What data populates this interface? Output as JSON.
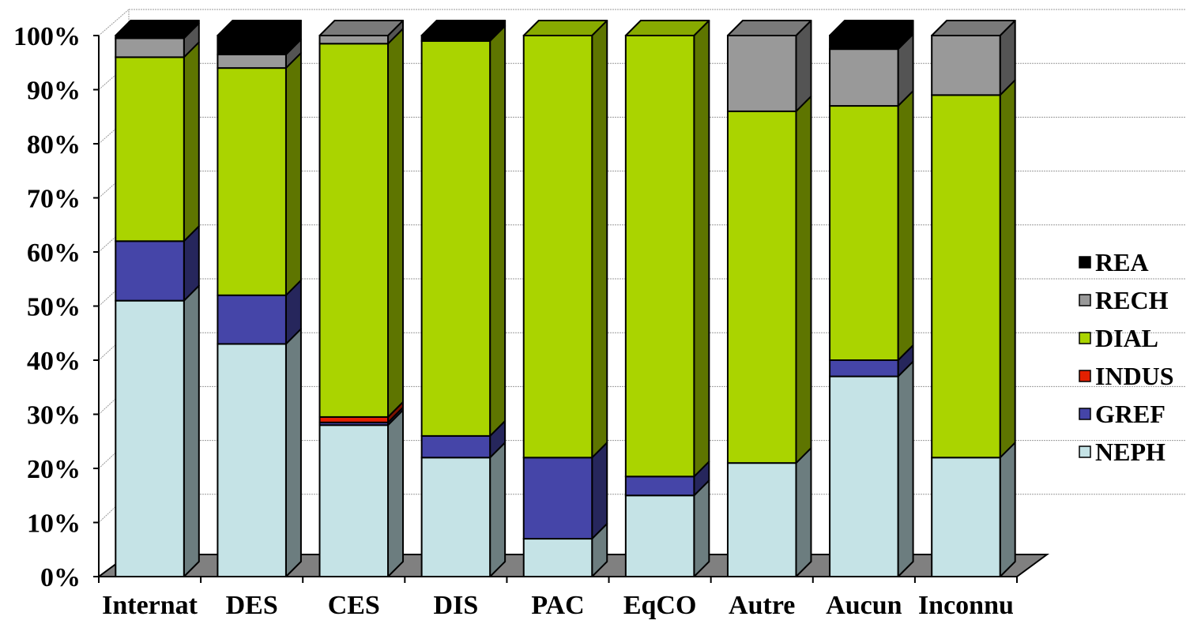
{
  "chart_data": {
    "type": "bar",
    "stacked": true,
    "percent_stacked": true,
    "three_d": true,
    "title": "",
    "xlabel": "",
    "ylabel": "",
    "ylim": [
      0,
      100
    ],
    "y_ticks": [
      0,
      10,
      20,
      30,
      40,
      50,
      60,
      70,
      80,
      90,
      100
    ],
    "y_tick_suffix": "%",
    "grid": true,
    "legend_position": "right",
    "categories": [
      "Internat",
      "DES",
      "CES",
      "DIS",
      "PAC",
      "EqCO",
      "Autre",
      "Aucun",
      "Inconnu"
    ],
    "series": [
      {
        "name": "NEPH",
        "color": "#C5E3E6",
        "values": [
          51,
          43,
          28,
          22,
          7,
          15,
          21,
          37,
          22
        ]
      },
      {
        "name": "GREF",
        "color": "#4545A8",
        "values": [
          11,
          9,
          0.5,
          4,
          15,
          3.5,
          0,
          3,
          0
        ]
      },
      {
        "name": "INDUS",
        "color": "#E32000",
        "values": [
          0,
          0,
          1,
          0,
          0,
          0,
          0,
          0,
          0
        ]
      },
      {
        "name": "DIAL",
        "color": "#AAD400",
        "values": [
          34,
          42,
          69,
          73,
          78,
          81.5,
          65,
          47,
          67
        ]
      },
      {
        "name": "RECH",
        "color": "#999999",
        "values": [
          3.5,
          2.5,
          1.5,
          0,
          0,
          0,
          14,
          10.5,
          11
        ]
      },
      {
        "name": "REA",
        "color": "#000000",
        "values": [
          0.5,
          3.5,
          0,
          1,
          0,
          0,
          0,
          2.5,
          0
        ]
      }
    ]
  }
}
